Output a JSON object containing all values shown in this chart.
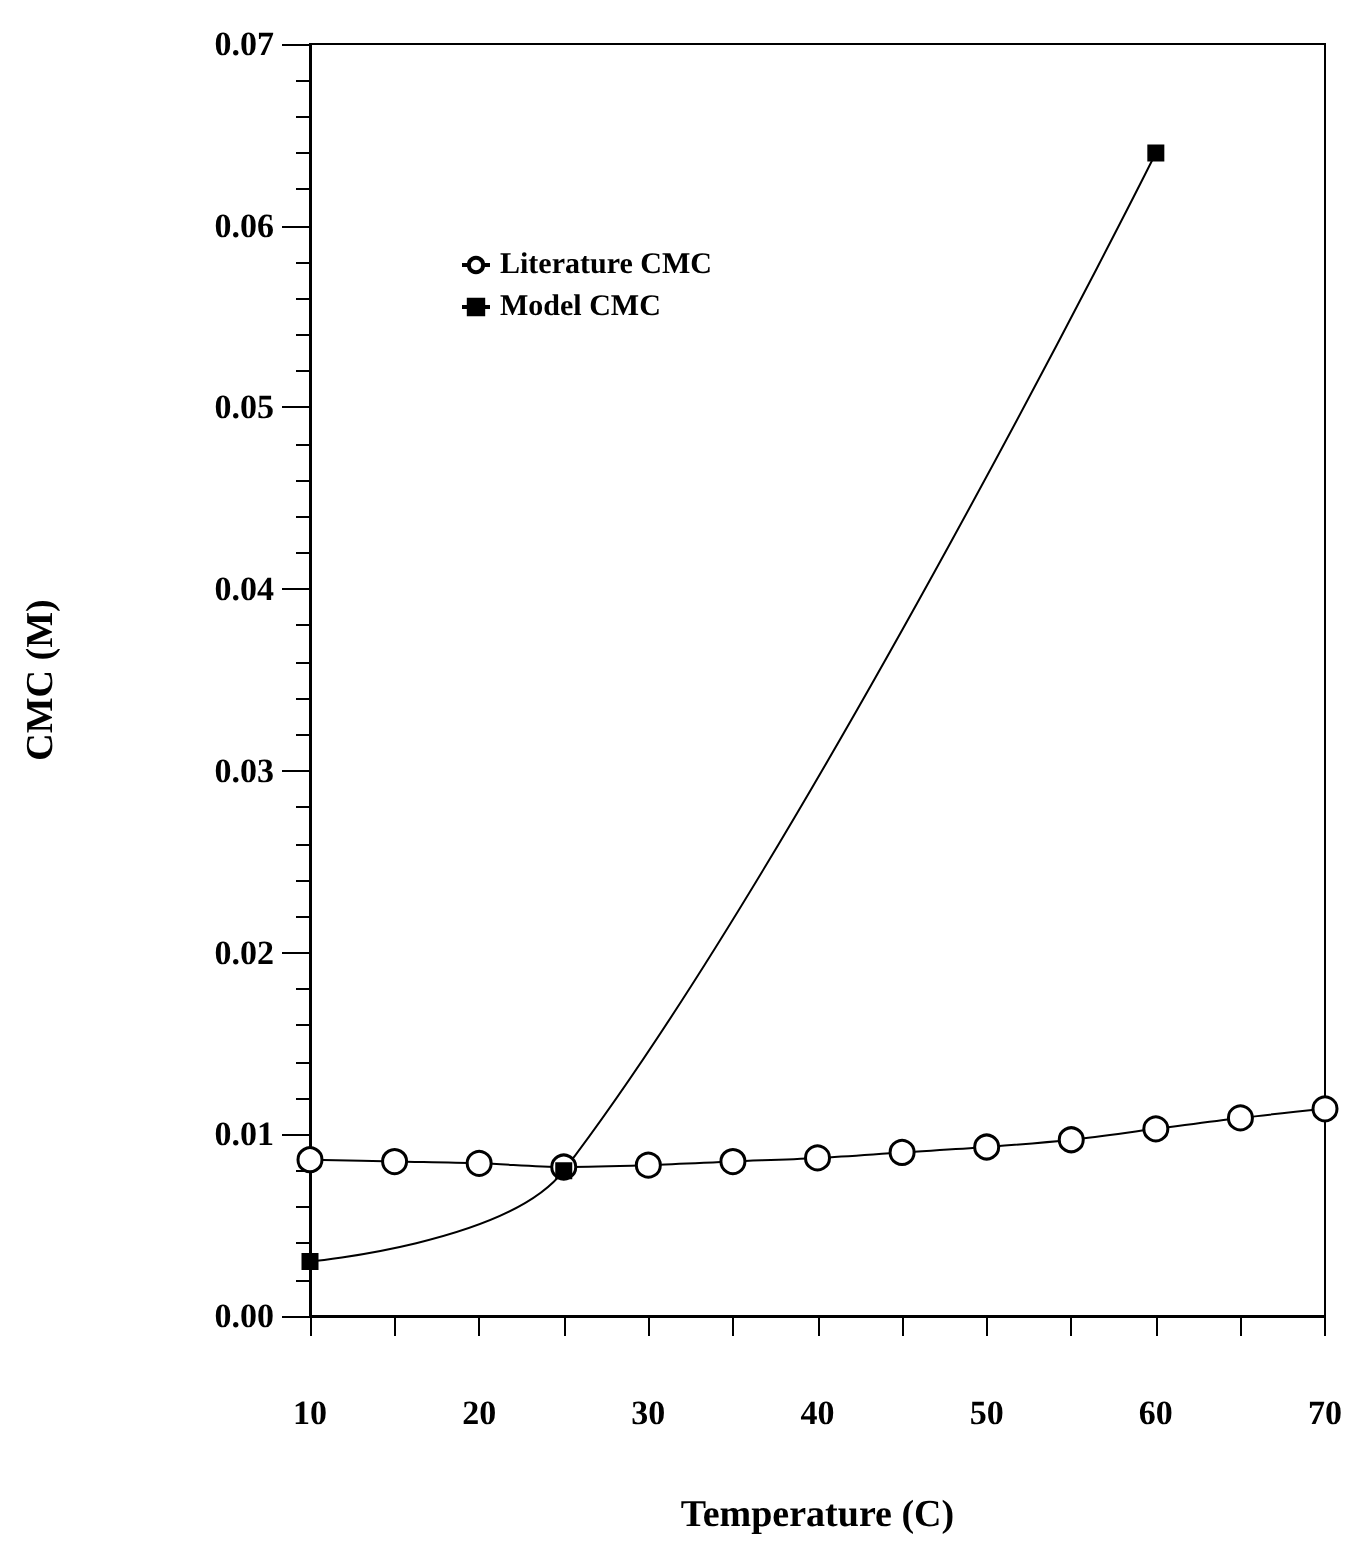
{
  "chart_data": {
    "type": "line",
    "xlabel": "Temperature (C)",
    "ylabel": "CMC (M)",
    "x": [
      10,
      15,
      20,
      25,
      30,
      35,
      40,
      45,
      50,
      55,
      60,
      65,
      70
    ],
    "series": [
      {
        "name": "Literature CMC",
        "color": "#000000",
        "marker": "circle",
        "values": [
          0.0086,
          0.0085,
          0.0084,
          0.0082,
          0.0083,
          0.0085,
          0.0087,
          0.009,
          0.0093,
          0.0097,
          0.0103,
          0.0109,
          0.0114
        ]
      },
      {
        "name": "Model CMC",
        "color": "#000000",
        "marker": "square",
        "x": [
          10,
          25,
          60
        ],
        "values": [
          0.003,
          0.008,
          0.064
        ]
      }
    ],
    "xlim": [
      10,
      70
    ],
    "xticks": [
      10,
      {
        "value": 15,
        "label": null
      },
      20,
      {
        "value": 25,
        "label": null
      },
      30,
      {
        "value": 35,
        "label": null
      },
      40,
      {
        "value": 45,
        "label": null
      },
      50,
      {
        "value": 55,
        "label": null
      },
      60,
      {
        "value": 65,
        "label": null
      },
      70
    ],
    "ylim": [
      0,
      0.07
    ],
    "yticks": [
      "0.00",
      0.01,
      0.02,
      0.03,
      0.04,
      0.05,
      0.06,
      0.07
    ],
    "grid": false,
    "legend": "top left",
    "line_style": "solid"
  }
}
